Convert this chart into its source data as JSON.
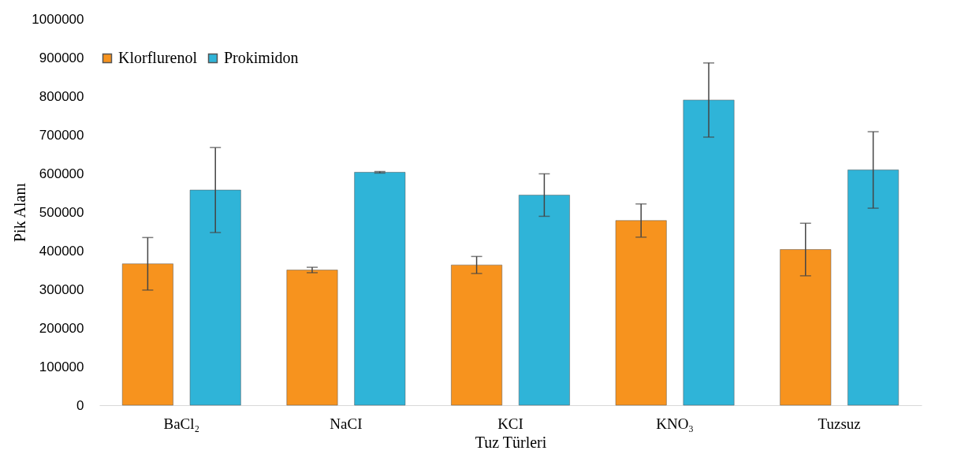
{
  "chart_data": {
    "type": "bar",
    "xlabel": "Tuz Türleri",
    "ylabel": "Pik Alanı",
    "categories": [
      "BaCl₂",
      "NaCI",
      "KCI",
      "KNO₃",
      "Tuzsuz"
    ],
    "series": [
      {
        "name": "Klorflurenol",
        "color": "#f7931e",
        "values": [
          366000,
          350000,
          363000,
          478000,
          403000
        ],
        "errors": [
          68000,
          7000,
          22000,
          43000,
          68000
        ]
      },
      {
        "name": "Prokimidon",
        "color": "#2fb4d8",
        "values": [
          557000,
          603000,
          544000,
          790000,
          609000
        ],
        "errors": [
          110000,
          2000,
          55000,
          96000,
          99000
        ]
      }
    ],
    "ylim": [
      0,
      1000000
    ],
    "yticks": [
      0,
      100000,
      200000,
      300000,
      400000,
      500000,
      600000,
      700000,
      800000,
      900000,
      1000000
    ],
    "grid": false,
    "legend": "top"
  }
}
